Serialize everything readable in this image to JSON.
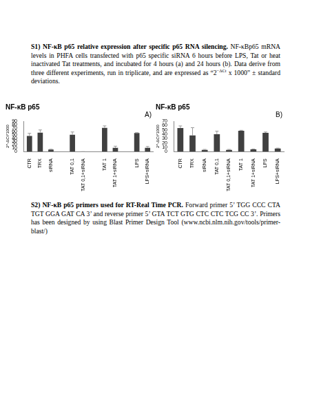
{
  "document": {
    "sections": [
      {
        "heading": "S1) NF-κB p65 relative expression after specific p65 RNA silencing.",
        "body": [
          {
            "text": "NF-κBp65 mRNA levels in PHFA cells transfected with p65 specific siRNA 6 hours before LPS, Tat or heat inactivated Tat treatments, and incubated for 4 hours (a) and 24 hours (b). Data derive from three different experiments, run in triplicate, and are expressed as “2"
          },
          {
            "text": "−ΔCt",
            "sup": true
          },
          {
            "text": " x 1000” ± standard deviations."
          }
        ]
      },
      {
        "heading": "S2) NF-κB p65 primers used for RT-Real Time PCR.",
        "body": [
          {
            "text": "Forward primer 5’ TGG CCC CTA TGT GGA GAT CA 3’ and reverse primer 5’ GTA TCT GTG CTC CTC TCG CC 3’. Primers has been designed by using Blast Primer Design Tool (www.ncbi.nlm.nih.gov/tools/primer-blast/)"
          }
        ]
      }
    ]
  },
  "chart_data": [
    {
      "type": "bar",
      "title": "NF-κB p65",
      "annotations": [
        "A)"
      ],
      "y_label": "2^-ΔCt*1000",
      "categories": [
        "CTR",
        "TRX",
        "siRNA",
        null,
        "TAT 0,1",
        "TAT 0,1+siRNA",
        null,
        "TAT 1",
        "TAT 1+siRNA",
        null,
        "LPS",
        "LPS+siRNA"
      ],
      "values": [
        46,
        56,
        6,
        null,
        50,
        0,
        null,
        70,
        11,
        null,
        55,
        11
      ],
      "errors": [
        8,
        8,
        1,
        null,
        8,
        0,
        null,
        6,
        5,
        null,
        1,
        4
      ],
      "color": "#404040",
      "ylim": [
        0,
        90
      ],
      "yticks": [
        0,
        10,
        20,
        30,
        40,
        50,
        60,
        70,
        80,
        90
      ],
      "grid": false
    },
    {
      "type": "bar",
      "title": "NF-κB p65",
      "annotations": [
        "B)"
      ],
      "y_label": "2^-ΔCt*1000",
      "categories": [
        "CTR",
        "TRX",
        "siRNA",
        "TAT 0,1",
        "TAT 0,1+siRNA",
        "TAT 1",
        "TAT 1+siRNA",
        "LPS",
        "LPS+siRNA"
      ],
      "values": [
        54,
        37,
        4,
        40,
        4,
        48,
        5,
        43,
        7
      ],
      "errors": [
        5,
        18,
        1,
        7,
        1,
        1,
        1,
        2,
        1
      ],
      "color": "#404040",
      "ylim": [
        0,
        70
      ],
      "yticks": [
        0,
        10,
        20,
        30,
        40,
        50,
        60,
        70
      ],
      "grid": false
    }
  ]
}
